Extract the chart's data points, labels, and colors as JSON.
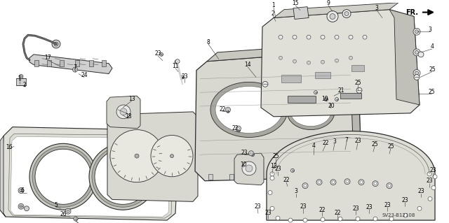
{
  "background_color": "#ffffff",
  "diagram_code": "SV23-B12108",
  "fr_label": "FR.",
  "fig_width": 6.4,
  "fig_height": 3.19,
  "dpi": 100,
  "line_color": "#2a2a2a",
  "fill_light": "#e8e8e8",
  "fill_mid": "#d0d0d0",
  "fill_dark": "#b0b0b0",
  "label_positions": [
    [
      68,
      88,
      "17"
    ],
    [
      30,
      118,
      "1"
    ],
    [
      35,
      126,
      "2"
    ],
    [
      105,
      100,
      "7"
    ],
    [
      118,
      110,
      "24"
    ],
    [
      192,
      147,
      "13"
    ],
    [
      196,
      165,
      "18"
    ],
    [
      230,
      82,
      "23"
    ],
    [
      252,
      98,
      "11"
    ],
    [
      260,
      115,
      "23"
    ],
    [
      299,
      62,
      "8"
    ],
    [
      323,
      157,
      "22"
    ],
    [
      342,
      183,
      "22"
    ],
    [
      355,
      218,
      "23"
    ],
    [
      353,
      239,
      "10"
    ],
    [
      395,
      237,
      "12"
    ],
    [
      358,
      94,
      "14"
    ],
    [
      18,
      214,
      "16"
    ],
    [
      37,
      272,
      "6"
    ],
    [
      82,
      297,
      "5"
    ],
    [
      90,
      308,
      "26"
    ],
    [
      393,
      8,
      "1"
    ],
    [
      393,
      20,
      "2"
    ],
    [
      424,
      6,
      "15"
    ],
    [
      470,
      6,
      "9"
    ],
    [
      538,
      14,
      "3"
    ],
    [
      612,
      44,
      "3"
    ],
    [
      615,
      70,
      "4"
    ],
    [
      614,
      100,
      "25"
    ],
    [
      511,
      121,
      "25"
    ],
    [
      487,
      131,
      "21"
    ],
    [
      465,
      143,
      "19"
    ],
    [
      476,
      152,
      "20"
    ],
    [
      614,
      133,
      "25"
    ],
    [
      446,
      213,
      "4"
    ],
    [
      463,
      205,
      "22"
    ],
    [
      476,
      203,
      "3"
    ],
    [
      493,
      201,
      "7"
    ],
    [
      509,
      202,
      "23"
    ],
    [
      533,
      207,
      "25"
    ],
    [
      556,
      210,
      "25"
    ],
    [
      395,
      228,
      "25"
    ],
    [
      398,
      247,
      "23"
    ],
    [
      410,
      263,
      "22"
    ],
    [
      424,
      278,
      "3"
    ],
    [
      434,
      299,
      "23"
    ],
    [
      460,
      305,
      "22"
    ],
    [
      482,
      308,
      "22"
    ],
    [
      508,
      302,
      "23"
    ],
    [
      527,
      300,
      "23"
    ],
    [
      553,
      297,
      "23"
    ],
    [
      578,
      290,
      "23"
    ],
    [
      601,
      278,
      "23"
    ],
    [
      612,
      262,
      "23"
    ],
    [
      616,
      247,
      "23"
    ],
    [
      384,
      308,
      "23"
    ],
    [
      369,
      300,
      "23"
    ]
  ]
}
